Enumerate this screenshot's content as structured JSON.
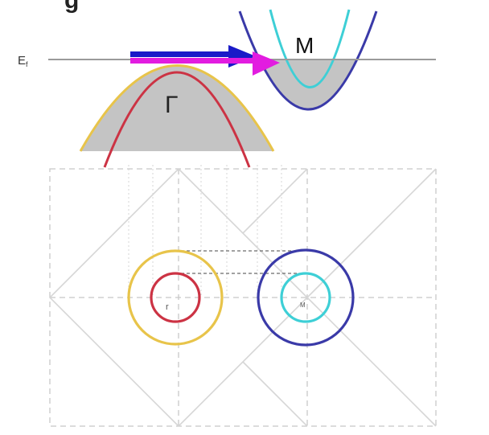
{
  "band_diagram": {
    "fermi_label": "E",
    "fermi_subscript": "f",
    "gamma_label": "Γ",
    "m_label": "M",
    "top_partial_glyph": "g"
  },
  "brillouin_zone": {
    "gamma_point_label": "r",
    "m_point_label": "M"
  },
  "colors": {
    "gamma_outer_band": "#e8c44a",
    "gamma_inner_band": "#cc3344",
    "m_outer_band": "#3a3aa8",
    "m_inner_band": "#3ecfd6",
    "filled_states": "#c4c4c4",
    "fermi_level": "#9a9a9a",
    "arrow_blue": "#1a1ac8",
    "arrow_magenta": "#e21ce0",
    "grid_dashed": "#c8c8c8",
    "zone_lines": "#d6d6d6"
  },
  "icons": {
    "nesting_arrow_1": "blue-arrow-right",
    "nesting_arrow_2": "magenta-arrow-right"
  }
}
